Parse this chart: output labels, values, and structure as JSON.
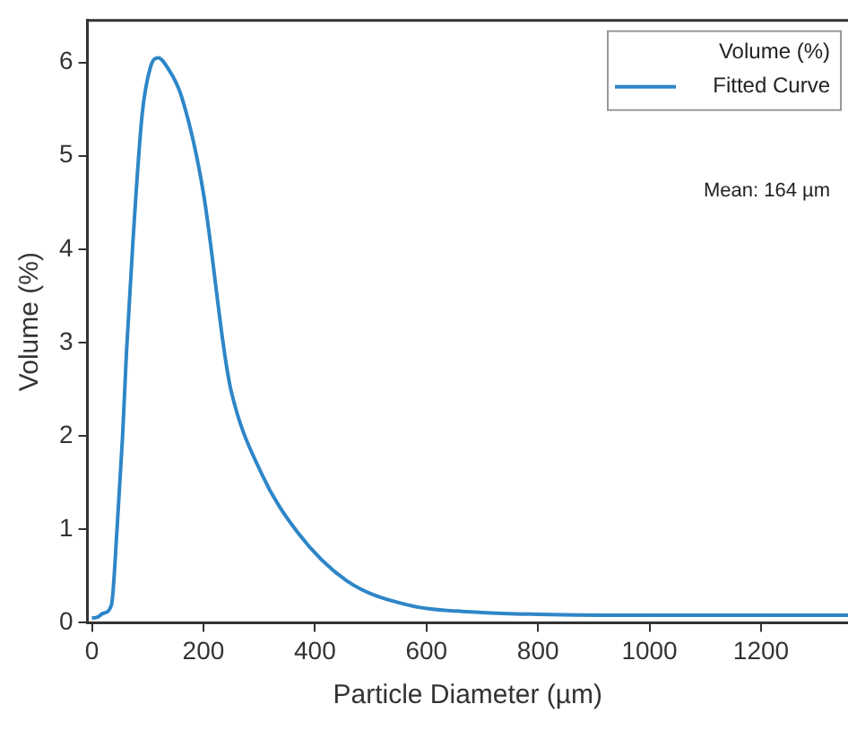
{
  "chart_data": {
    "type": "line",
    "xlabel": "Particle Diameter (µm)",
    "ylabel": "Volume (%)",
    "xlim": [
      -8,
      1356
    ],
    "xticks": [
      0,
      200,
      400,
      600,
      800,
      1000,
      1200
    ],
    "ylim": [
      0,
      6.45
    ],
    "yticks": [
      0,
      1,
      2,
      3,
      4,
      5,
      6
    ],
    "grid": false,
    "legend": "top right",
    "marker": "none",
    "line_style": "solid",
    "annotations": [
      "Volume (%)",
      "Mean: 164 µm"
    ],
    "series": [
      {
        "name": "Fitted Curve",
        "color": "#2e86c8",
        "x": [
          0,
          10,
          20,
          35,
          45,
          55,
          62,
          73,
          90,
          105,
          119,
          135,
          161,
          200,
          238,
          249,
          304,
          370,
          457,
          567,
          699,
          800,
          1000,
          1200,
          1356
        ],
        "values": [
          0.05,
          0.06,
          0.1,
          0.19,
          1.0,
          2.0,
          2.9,
          4.03,
          5.44,
          5.95,
          6.05,
          5.95,
          5.63,
          4.6,
          2.88,
          2.5,
          1.6,
          0.96,
          0.45,
          0.19,
          0.11,
          0.09,
          0.08,
          0.08,
          0.08
        ]
      }
    ]
  }
}
